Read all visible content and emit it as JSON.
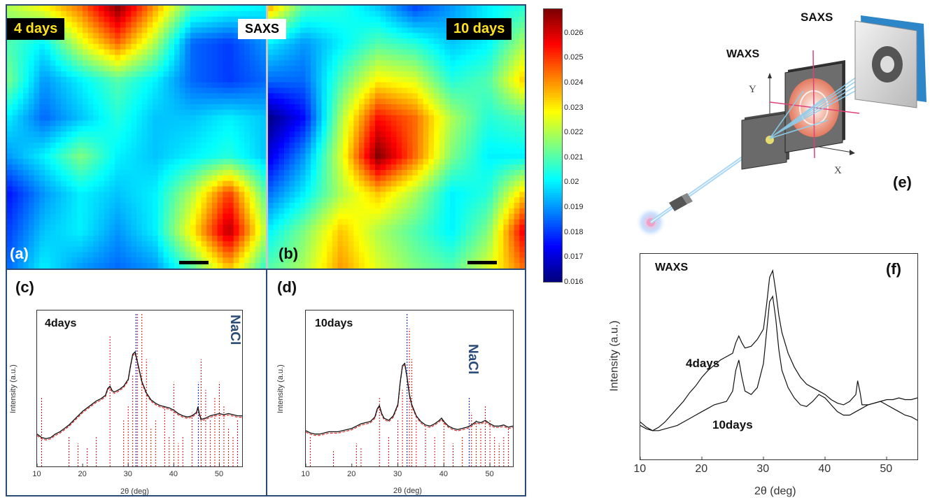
{
  "panels": {
    "a": {
      "letter": "(a)",
      "time_label": "4 days",
      "technique": "SAXS"
    },
    "b": {
      "letter": "(b)",
      "time_label": "10 days"
    },
    "c": {
      "letter": "(c)",
      "sample_label": "4days",
      "ref_label": "NaCl",
      "ylabel": "Intensity (a.u.)",
      "xlabel": "2θ (deg)"
    },
    "d": {
      "letter": "(d)",
      "sample_label": "10days",
      "ref_label": "NaCl",
      "ylabel": "Intensity (a.u.)",
      "xlabel": "2θ (deg)"
    },
    "e": {
      "letter": "(e)",
      "saxs_label": "SAXS",
      "waxs_label": "WAXS",
      "x_axis": "X",
      "y_axis": "Y"
    },
    "f": {
      "letter": "(f)",
      "title": "WAXS",
      "series1_label": "4days",
      "series2_label": "10days",
      "ylabel": "Intensity (a.u.)",
      "xlabel": "2θ (deg)"
    }
  },
  "colorbar": {
    "ticks": [
      "0.026",
      "0.025",
      "0.024",
      "0.023",
      "0.022",
      "0.021",
      "0.02",
      "0.019",
      "0.018",
      "0.017",
      "0.016"
    ],
    "min": 0.016,
    "max": 0.027
  },
  "colors": {
    "frame": "#2a4a78",
    "fit_red": "#e03030",
    "nacl_blue": "#2233cc",
    "ref_red": "#d01010"
  },
  "chart_data": [
    {
      "type": "heatmap",
      "panel": "a",
      "grid_values": [
        [
          0.022,
          0.023,
          0.0245,
          0.027,
          0.024,
          0.021,
          0.0205,
          0.02
        ],
        [
          0.021,
          0.02,
          0.0225,
          0.0245,
          0.022,
          0.0185,
          0.018,
          0.019
        ],
        [
          0.0215,
          0.019,
          0.02,
          0.021,
          0.02,
          0.0185,
          0.018,
          0.0185
        ],
        [
          0.02,
          0.0185,
          0.0195,
          0.0205,
          0.0195,
          0.0195,
          0.02,
          0.0195
        ],
        [
          0.019,
          0.02,
          0.0215,
          0.02,
          0.0195,
          0.02,
          0.0205,
          0.0195
        ],
        [
          0.0175,
          0.019,
          0.02,
          0.0195,
          0.02,
          0.022,
          0.025,
          0.021
        ],
        [
          0.018,
          0.0195,
          0.02,
          0.019,
          0.02,
          0.023,
          0.0265,
          0.022
        ],
        [
          0.0185,
          0.02,
          0.019,
          0.0185,
          0.019,
          0.021,
          0.0235,
          0.0205
        ]
      ]
    },
    {
      "type": "heatmap",
      "panel": "b",
      "grid_values": [
        [
          0.024,
          0.021,
          0.0205,
          0.0195,
          0.018,
          0.019,
          0.02,
          0.0205
        ],
        [
          0.02,
          0.019,
          0.02,
          0.021,
          0.0205,
          0.0195,
          0.02,
          0.022
        ],
        [
          0.0185,
          0.0185,
          0.021,
          0.023,
          0.0225,
          0.0205,
          0.021,
          0.0235
        ],
        [
          0.016,
          0.0175,
          0.022,
          0.0255,
          0.0245,
          0.022,
          0.0205,
          0.021
        ],
        [
          0.017,
          0.019,
          0.0225,
          0.027,
          0.0245,
          0.0215,
          0.02,
          0.02
        ],
        [
          0.0185,
          0.02,
          0.022,
          0.0235,
          0.022,
          0.02,
          0.0205,
          0.0235
        ],
        [
          0.02,
          0.0215,
          0.0235,
          0.022,
          0.021,
          0.02,
          0.0215,
          0.026
        ],
        [
          0.021,
          0.022,
          0.024,
          0.0225,
          0.0215,
          0.021,
          0.0225,
          0.0245
        ]
      ]
    },
    {
      "type": "line",
      "panel": "c",
      "xlim": [
        10,
        55
      ],
      "xticks": [
        10,
        20,
        30,
        40,
        50
      ],
      "series": [
        {
          "name": "4days",
          "x": [
            10,
            11,
            12,
            13,
            14,
            15,
            16,
            17,
            18,
            19,
            20,
            21,
            22,
            23,
            24,
            25,
            25.5,
            26,
            26.5,
            27,
            28,
            29,
            30,
            30.5,
            31,
            31.5,
            32,
            32.5,
            33,
            34,
            35,
            36,
            37,
            38,
            39,
            40,
            41,
            42,
            43,
            44,
            45,
            45.3,
            45.6,
            46,
            47,
            48,
            49,
            50,
            51,
            52,
            53,
            54,
            55
          ],
          "y": [
            0.1,
            0.07,
            0.06,
            0.07,
            0.1,
            0.12,
            0.15,
            0.18,
            0.22,
            0.26,
            0.3,
            0.33,
            0.36,
            0.39,
            0.41,
            0.44,
            0.5,
            0.52,
            0.48,
            0.47,
            0.49,
            0.52,
            0.58,
            0.7,
            0.8,
            0.82,
            0.74,
            0.65,
            0.56,
            0.46,
            0.4,
            0.37,
            0.35,
            0.34,
            0.33,
            0.31,
            0.28,
            0.26,
            0.25,
            0.26,
            0.29,
            0.34,
            0.28,
            0.23,
            0.24,
            0.26,
            0.27,
            0.28,
            0.27,
            0.28,
            0.27,
            0.26,
            0.26
          ]
        }
      ],
      "ref_red_peaks": [
        [
          11,
          0.45
        ],
        [
          17,
          0.2
        ],
        [
          19,
          0.15
        ],
        [
          21,
          0.12
        ],
        [
          23,
          0.2
        ],
        [
          26,
          0.85
        ],
        [
          29,
          0.3
        ],
        [
          30,
          0.4
        ],
        [
          31,
          0.6
        ],
        [
          32,
          1.0
        ],
        [
          33,
          1.0
        ],
        [
          34,
          0.7
        ],
        [
          35,
          0.25
        ],
        [
          36,
          0.3
        ],
        [
          38,
          0.4
        ],
        [
          39,
          0.2
        ],
        [
          40,
          0.55
        ],
        [
          41,
          0.15
        ],
        [
          42,
          0.2
        ],
        [
          44,
          0.35
        ],
        [
          46,
          0.7
        ],
        [
          47,
          0.5
        ],
        [
          48,
          0.3
        ],
        [
          49,
          0.45
        ],
        [
          50,
          0.55
        ],
        [
          51,
          0.4
        ],
        [
          52,
          0.25
        ],
        [
          53,
          0.2
        ],
        [
          54,
          0.3
        ]
      ],
      "ref_blue_peaks": [
        [
          31.7,
          1.0
        ],
        [
          45.4,
          0.55
        ]
      ]
    },
    {
      "type": "line",
      "panel": "d",
      "xlim": [
        10,
        55
      ],
      "xticks": [
        10,
        20,
        30,
        40,
        50
      ],
      "series": [
        {
          "name": "10days",
          "x": [
            10,
            11,
            12,
            13,
            14,
            15,
            16,
            17,
            18,
            19,
            20,
            21,
            22,
            23,
            24,
            25,
            25.5,
            26,
            26.5,
            27,
            28,
            29,
            30,
            30.5,
            31,
            31.5,
            32,
            32.5,
            33,
            34,
            35,
            36,
            37,
            38,
            39,
            39.5,
            40,
            41,
            42,
            43,
            44,
            45,
            46,
            47,
            48,
            49,
            50,
            51,
            52,
            53,
            54,
            55
          ],
          "y": [
            0.13,
            0.11,
            0.1,
            0.1,
            0.11,
            0.12,
            0.12,
            0.12,
            0.13,
            0.14,
            0.15,
            0.17,
            0.19,
            0.2,
            0.21,
            0.25,
            0.32,
            0.35,
            0.28,
            0.24,
            0.22,
            0.26,
            0.36,
            0.55,
            0.7,
            0.72,
            0.6,
            0.45,
            0.36,
            0.26,
            0.21,
            0.18,
            0.17,
            0.19,
            0.22,
            0.24,
            0.21,
            0.17,
            0.15,
            0.14,
            0.15,
            0.16,
            0.18,
            0.21,
            0.2,
            0.22,
            0.19,
            0.17,
            0.17,
            0.18,
            0.16,
            0.17
          ]
        }
      ],
      "ref_red_peaks": [
        [
          11,
          0.2
        ],
        [
          16,
          0.1
        ],
        [
          21,
          0.15
        ],
        [
          22,
          0.12
        ],
        [
          26,
          0.45
        ],
        [
          28,
          0.2
        ],
        [
          30,
          0.3
        ],
        [
          31,
          0.5
        ],
        [
          32.5,
          0.9
        ],
        [
          33,
          0.7
        ],
        [
          34,
          0.3
        ],
        [
          36,
          0.25
        ],
        [
          38,
          0.2
        ],
        [
          40,
          0.3
        ],
        [
          42,
          0.15
        ],
        [
          44,
          0.2
        ],
        [
          46,
          0.35
        ],
        [
          47,
          0.3
        ],
        [
          48,
          0.25
        ],
        [
          49,
          0.4
        ],
        [
          50,
          0.3
        ],
        [
          51,
          0.2
        ],
        [
          52,
          0.15
        ],
        [
          53,
          0.2
        ],
        [
          54,
          0.25
        ]
      ],
      "ref_blue_peaks": [
        [
          32,
          1.0
        ],
        [
          45.5,
          0.45
        ]
      ]
    },
    {
      "type": "line",
      "panel": "f",
      "xlim": [
        10,
        55
      ],
      "xticks": [
        10,
        20,
        30,
        40,
        50
      ],
      "series": [
        {
          "name": "4days",
          "x": [
            10,
            11,
            12,
            13,
            14,
            15,
            16,
            17,
            18,
            19,
            20,
            21,
            22,
            23,
            24,
            25,
            25.5,
            26,
            26.5,
            27,
            28,
            29,
            30,
            30.5,
            31,
            31.5,
            32,
            32.5,
            33,
            34,
            35,
            36,
            37,
            38,
            39,
            40,
            41,
            42,
            43,
            44,
            45,
            45.3,
            45.7,
            46,
            47,
            48,
            49,
            50,
            51,
            52,
            53,
            54,
            55
          ],
          "y": [
            0.12,
            0.09,
            0.07,
            0.09,
            0.12,
            0.16,
            0.2,
            0.24,
            0.29,
            0.33,
            0.38,
            0.42,
            0.45,
            0.48,
            0.5,
            0.52,
            0.58,
            0.62,
            0.58,
            0.55,
            0.56,
            0.6,
            0.66,
            0.8,
            0.96,
            1.0,
            0.88,
            0.74,
            0.64,
            0.52,
            0.44,
            0.38,
            0.34,
            0.32,
            0.3,
            0.28,
            0.25,
            0.23,
            0.22,
            0.24,
            0.28,
            0.36,
            0.29,
            0.22,
            0.22,
            0.23,
            0.24,
            0.25,
            0.25,
            0.26,
            0.25,
            0.25,
            0.26
          ]
        },
        {
          "name": "10days",
          "x": [
            10,
            11,
            12,
            13,
            14,
            15,
            16,
            17,
            18,
            19,
            20,
            21,
            22,
            23,
            24,
            25,
            25.5,
            26,
            26.5,
            27,
            28,
            29,
            30,
            30.5,
            31,
            31.5,
            32,
            32.5,
            33,
            34,
            35,
            36,
            37,
            38,
            39,
            40,
            41,
            42,
            43,
            44,
            45,
            46,
            47,
            48,
            49,
            50,
            51,
            52,
            53,
            54,
            55
          ],
          "y": [
            0.1,
            0.08,
            0.07,
            0.07,
            0.08,
            0.09,
            0.1,
            0.12,
            0.14,
            0.16,
            0.18,
            0.2,
            0.22,
            0.23,
            0.24,
            0.3,
            0.42,
            0.48,
            0.38,
            0.3,
            0.28,
            0.32,
            0.46,
            0.64,
            0.82,
            0.85,
            0.72,
            0.54,
            0.42,
            0.32,
            0.26,
            0.22,
            0.21,
            0.24,
            0.28,
            0.26,
            0.22,
            0.18,
            0.16,
            0.16,
            0.18,
            0.2,
            0.22,
            0.23,
            0.24,
            0.22,
            0.2,
            0.18,
            0.16,
            0.15,
            0.13
          ]
        }
      ]
    }
  ]
}
